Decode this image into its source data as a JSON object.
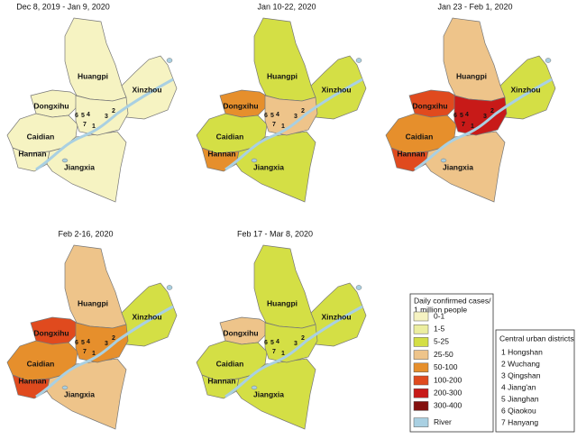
{
  "panels": [
    {
      "title": "Dec 8, 2019 - Jan 9, 2020",
      "districts": [
        {
          "name": "Huangpi",
          "class": 0
        },
        {
          "name": "Xinzhou",
          "class": 0
        },
        {
          "name": "Dongxihu",
          "class": 0
        },
        {
          "name": "Caidian",
          "class": 0
        },
        {
          "name": "Hannan",
          "class": 0
        },
        {
          "name": "Jiangxia",
          "class": 0
        }
      ],
      "central_class": 0
    },
    {
      "title": "Jan 10-22, 2020",
      "districts": [
        {
          "name": "Huangpi",
          "class": 2
        },
        {
          "name": "Xinzhou",
          "class": 2
        },
        {
          "name": "Dongxihu",
          "class": 4
        },
        {
          "name": "Caidian",
          "class": 2
        },
        {
          "name": "Hannan",
          "class": 4
        },
        {
          "name": "Jiangxia",
          "class": 2
        }
      ],
      "central_class": 3
    },
    {
      "title": "Jan 23 - Feb 1, 2020",
      "districts": [
        {
          "name": "Huangpi",
          "class": 3
        },
        {
          "name": "Xinzhou",
          "class": 2
        },
        {
          "name": "Dongxihu",
          "class": 5
        },
        {
          "name": "Caidian",
          "class": 4
        },
        {
          "name": "Hannan",
          "class": 5
        },
        {
          "name": "Jiangxia",
          "class": 3
        }
      ],
      "central_class": 6
    },
    {
      "title": "Feb 2-16, 2020",
      "districts": [
        {
          "name": "Huangpi",
          "class": 3
        },
        {
          "name": "Xinzhou",
          "class": 2
        },
        {
          "name": "Dongxihu",
          "class": 5
        },
        {
          "name": "Caidian",
          "class": 4
        },
        {
          "name": "Hannan",
          "class": 5
        },
        {
          "name": "Jiangxia",
          "class": 3
        }
      ],
      "central_class": 4
    },
    {
      "title": "Feb 17 - Mar 8, 2020",
      "districts": [
        {
          "name": "Huangpi",
          "class": 2
        },
        {
          "name": "Xinzhou",
          "class": 2
        },
        {
          "name": "Dongxihu",
          "class": 3
        },
        {
          "name": "Caidian",
          "class": 2
        },
        {
          "name": "Hannan",
          "class": 2
        },
        {
          "name": "Jiangxia",
          "class": 2
        }
      ],
      "central_class": 2
    }
  ],
  "central_numbers": [
    "1",
    "2",
    "3",
    "4",
    "5",
    "6",
    "7"
  ],
  "legend": {
    "title": [
      "Daily confirmed cases/",
      "1 million people"
    ],
    "items": [
      {
        "label": "0-1",
        "color": "#f6f3c2"
      },
      {
        "label": "1-5",
        "color": "#eceea0"
      },
      {
        "label": "5-25",
        "color": "#d4df45"
      },
      {
        "label": "25-50",
        "color": "#eec48a"
      },
      {
        "label": "50-100",
        "color": "#e68f2c"
      },
      {
        "label": "100-200",
        "color": "#e04a1e"
      },
      {
        "label": "200-300",
        "color": "#c81a18"
      },
      {
        "label": "300-400",
        "color": "#84100e"
      }
    ],
    "river": {
      "label": "River",
      "color": "#a9d0e2"
    }
  },
  "central_districts": {
    "title": "Central urban districts",
    "items": [
      "1 Hongshan",
      "2 Wuchang",
      "3 Qingshan",
      "4 Jiang'an",
      "5 Jianghan",
      "6 Qiaokou",
      "7 Hanyang"
    ]
  }
}
